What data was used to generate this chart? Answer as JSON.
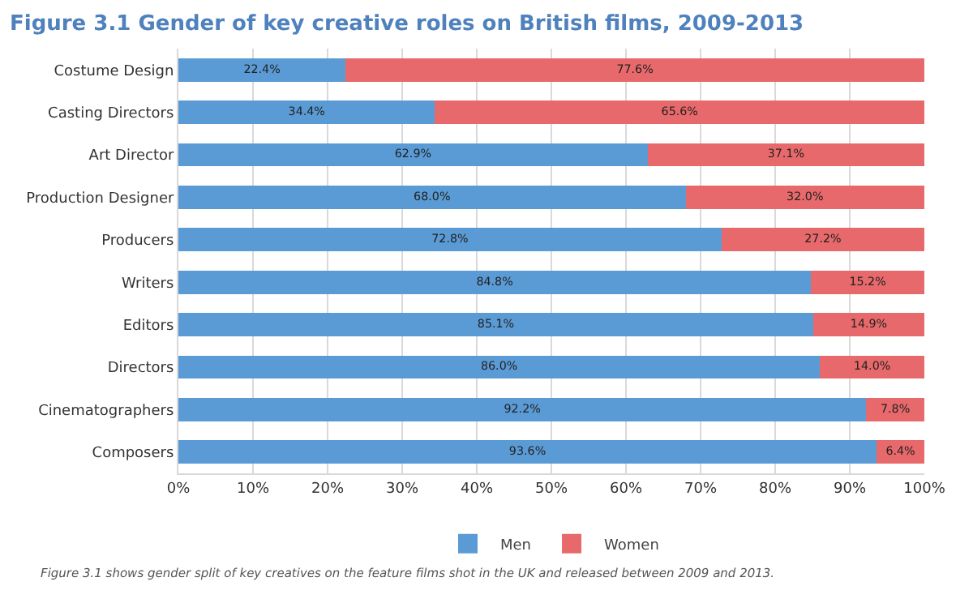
{
  "chart_data": {
    "type": "bar",
    "orientation": "horizontal",
    "stacked": true,
    "title": "Figure 3.1 Gender of key creative roles on British films, 2009-2013",
    "categories": [
      "Costume Design",
      "Casting Directors",
      "Art Director",
      "Production Designer",
      "Producers",
      "Writers",
      "Editors",
      "Directors",
      "Cinematographers",
      "Composers"
    ],
    "series": [
      {
        "name": "Men",
        "color": "#5b9bd5",
        "values": [
          22.4,
          34.4,
          62.9,
          68.0,
          72.8,
          84.8,
          85.1,
          86.0,
          92.2,
          93.6
        ],
        "value_labels": [
          "22.4%",
          "34.4%",
          "62.9%",
          "68.0%",
          "72.8%",
          "84.8%",
          "85.1%",
          "86.0%",
          "92.2%",
          "93.6%"
        ]
      },
      {
        "name": "Women",
        "color": "#e8696b",
        "values": [
          77.6,
          65.6,
          37.1,
          32.0,
          27.2,
          15.2,
          14.9,
          14.0,
          7.8,
          6.4
        ],
        "value_labels": [
          "77.6%",
          "65.6%",
          "37.1%",
          "32.0%",
          "27.2%",
          "15.2%",
          "14.9%",
          "14.0%",
          "7.8%",
          "6.4%"
        ]
      }
    ],
    "xlim": [
      0,
      100
    ],
    "xticks": [
      {
        "value": 0,
        "label": "0%"
      },
      {
        "value": 10,
        "label": "10%"
      },
      {
        "value": 20,
        "label": "20%"
      },
      {
        "value": 30,
        "label": "30%"
      },
      {
        "value": 40,
        "label": "40%"
      },
      {
        "value": 50,
        "label": "50%"
      },
      {
        "value": 60,
        "label": "60%"
      },
      {
        "value": 70,
        "label": "70%"
      },
      {
        "value": 80,
        "label": "80%"
      },
      {
        "value": 90,
        "label": "90%"
      },
      {
        "value": 100,
        "label": "100%"
      }
    ],
    "grid": "x",
    "legend": "bottom",
    "annotations": [
      "Figure 3.1 shows gender split of key creatives on the feature films shot in the UK and released between 2009 and 2013."
    ]
  }
}
